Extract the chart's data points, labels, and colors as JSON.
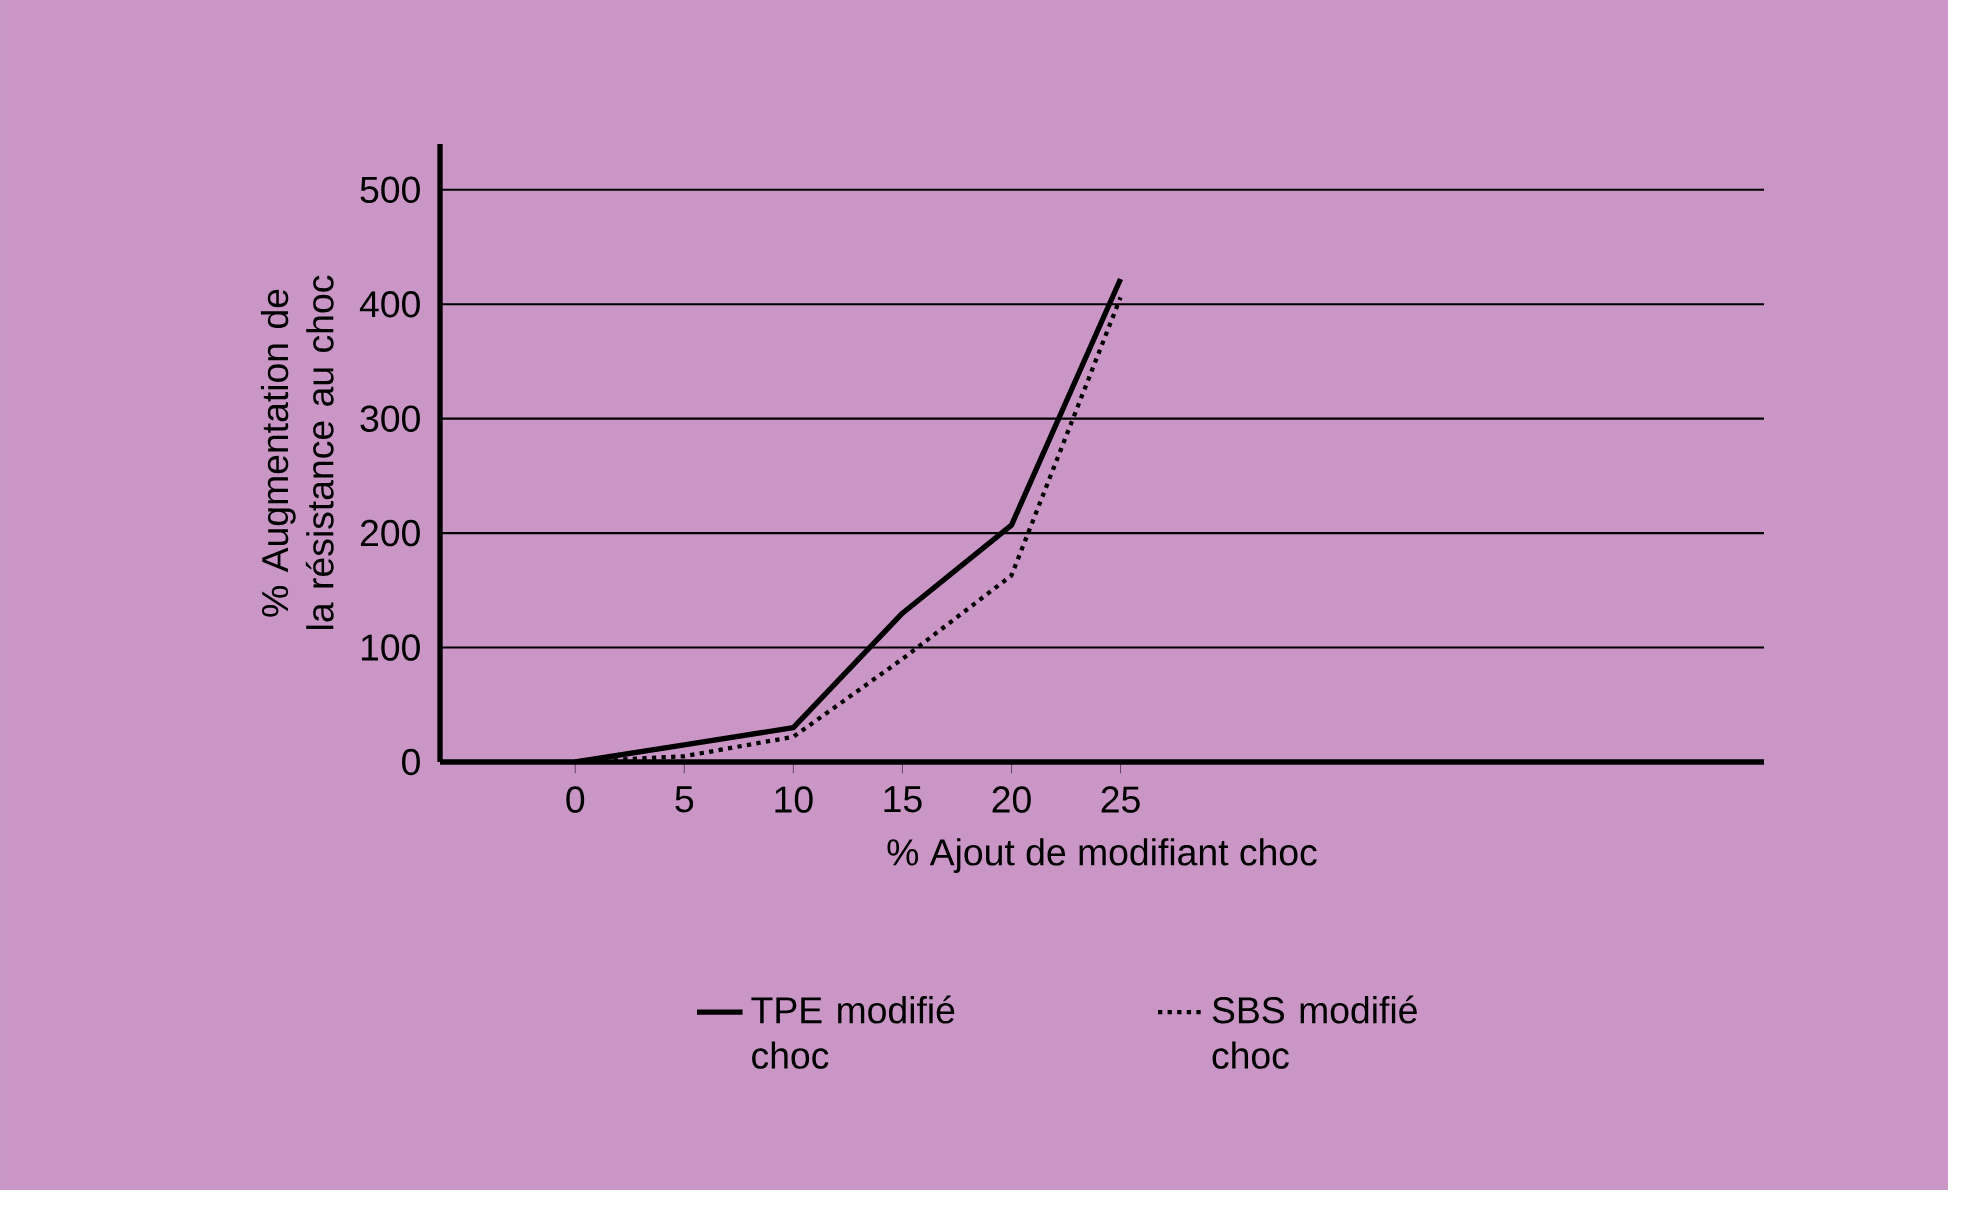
{
  "chart_data": {
    "type": "line",
    "xlabel": "% Ajout de modifiant choc",
    "ylabel": "% Augmentation de la résistance au choc",
    "x": [
      0,
      5,
      10,
      15,
      20,
      25
    ],
    "series": [
      {
        "name": "TPE modifié choc",
        "color": "#000000",
        "line_style": "solid",
        "values": [
          0,
          15,
          30,
          130,
          207,
          422
        ]
      },
      {
        "name": "SBS modifié choc",
        "color": "#000000",
        "line_style": "dotted",
        "values": [
          0,
          5,
          22,
          90,
          163,
          406
        ]
      }
    ],
    "xlim": [
      -6.2,
      54.5
    ],
    "ylim": [
      0,
      540
    ],
    "xticks": [
      0,
      5,
      10,
      15,
      20,
      25
    ],
    "yticks": [
      0,
      100,
      200,
      300,
      400,
      500
    ],
    "grid": "y",
    "legend": "bottom"
  }
}
